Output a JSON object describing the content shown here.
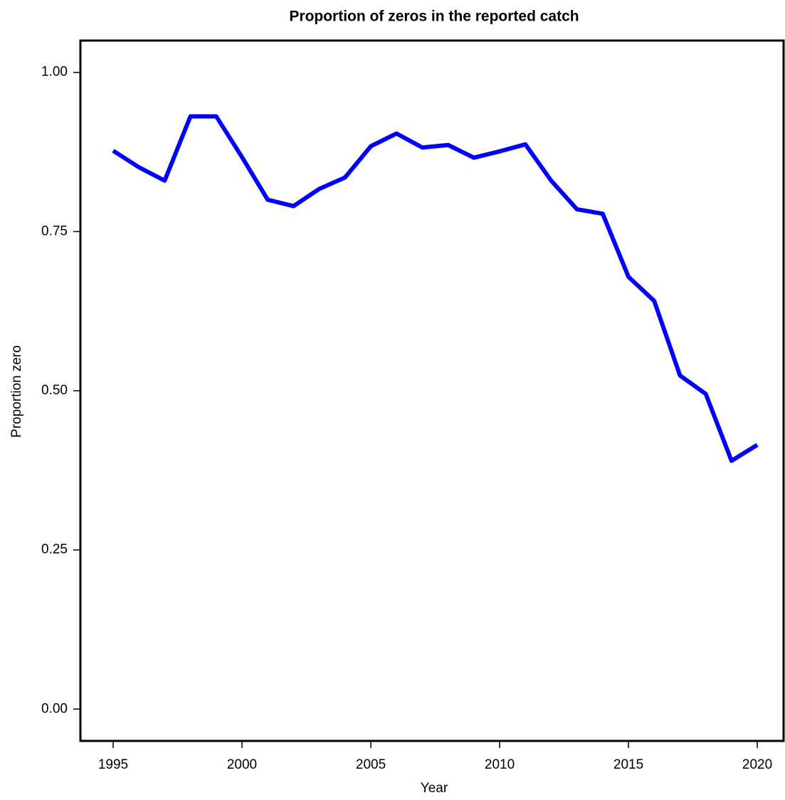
{
  "chart_data": {
    "type": "line",
    "title": "Proportion of zeros in the reported catch",
    "x_label": "Year",
    "y_label": "Proportion zero",
    "x": [
      1995,
      1996,
      1997,
      1998,
      1999,
      2000,
      2001,
      2002,
      2003,
      2004,
      2005,
      2006,
      2007,
      2008,
      2009,
      2010,
      2011,
      2012,
      2013,
      2014,
      2015,
      2016,
      2017,
      2018,
      2019,
      2020
    ],
    "series": [
      {
        "name": "Proportion zero",
        "color": "#0000ff",
        "values": [
          0.877,
          0.851,
          0.83,
          0.931,
          0.931,
          0.867,
          0.8,
          0.79,
          0.817,
          0.835,
          0.884,
          0.904,
          0.882,
          0.886,
          0.866,
          0.876,
          0.887,
          0.83,
          0.785,
          0.778,
          0.679,
          0.641,
          0.524,
          0.495,
          0.39,
          0.415
        ]
      }
    ],
    "xlim": [
      1993.73,
      2021.02
    ],
    "ylim": [
      -0.05,
      1.05
    ],
    "xticks": [
      1995,
      2000,
      2005,
      2010,
      2015,
      2020
    ],
    "yticks": [
      {
        "value": 0,
        "label": "0.00"
      },
      {
        "value": 0.25,
        "label": "0.25"
      },
      {
        "value": 0.5,
        "label": "0.50"
      },
      {
        "value": 0.75,
        "label": "0.75"
      },
      {
        "value": 1,
        "label": "1.00"
      }
    ],
    "grid": false
  }
}
